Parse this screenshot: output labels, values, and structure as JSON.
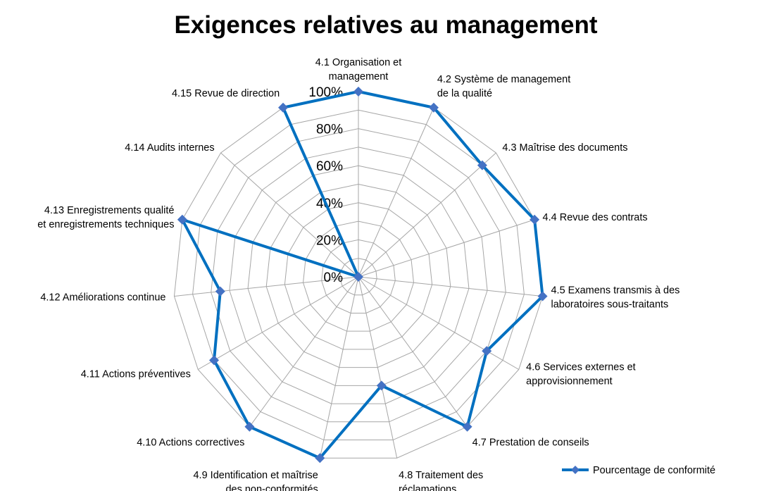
{
  "chart_data": {
    "type": "radar",
    "title": "Exigences relatives au management",
    "categories": [
      [
        "4.1 Organisation et",
        "management"
      ],
      [
        "4.2 Système de management",
        "de la qualité"
      ],
      [
        "4.3 Maîtrise des documents"
      ],
      [
        "4.4 Revue des contrats"
      ],
      [
        "4.5 Examens transmis à des",
        "laboratoires sous-traitants"
      ],
      [
        "4.6 Services externes et",
        "approvisionnement"
      ],
      [
        "4.7 Prestation de conseils"
      ],
      [
        "4.8 Traitement des",
        "réclamations"
      ],
      [
        "4.9 Identification et maîtrise",
        "des non-conformités"
      ],
      [
        "4.10 Actions correctives"
      ],
      [
        "4.11 Actions préventives"
      ],
      [
        "4.12 Améliorations continue"
      ],
      [
        "4.13 Enregistrements qualité",
        "et enregistrements techniques"
      ],
      [
        "4.14 Audits internes"
      ],
      [
        "4.15 Revue de direction"
      ]
    ],
    "series": [
      {
        "name": "Pourcentage de conformité",
        "values": [
          100,
          100,
          90,
          100,
          100,
          80,
          100,
          60,
          100,
          100,
          90,
          75,
          100,
          0,
          100
        ]
      }
    ],
    "ticks": [
      "0%",
      "20%",
      "40%",
      "60%",
      "80%",
      "100%"
    ],
    "rlim": [
      0,
      100
    ],
    "grid": true,
    "legend": "bottom-right",
    "colors": {
      "series": "#0070C0",
      "marker": "#4472C4",
      "grid": "#A6A6A6"
    }
  }
}
